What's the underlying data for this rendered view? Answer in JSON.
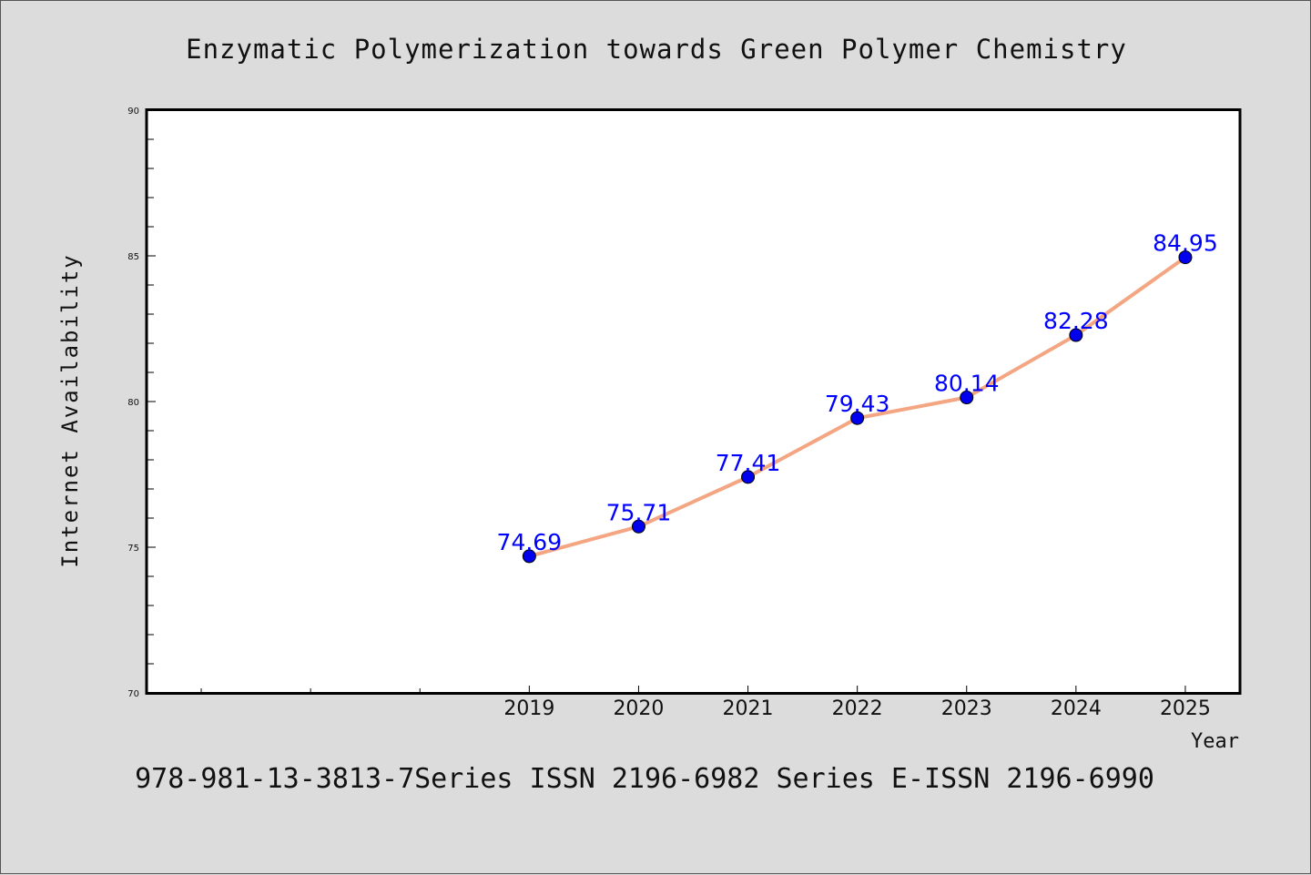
{
  "chart_data": {
    "type": "line",
    "title": "Enzymatic Polymerization towards Green Polymer Chemistry",
    "xlabel": "Year",
    "ylabel": "Internet Availability",
    "x_range": [
      2015.5,
      2025.5
    ],
    "ylim": [
      70,
      90
    ],
    "y_ticks": [
      "70",
      "75",
      "80",
      "85",
      "90"
    ],
    "x": [
      "2019",
      "2020",
      "2021",
      "2022",
      "2023",
      "2024",
      "2025"
    ],
    "x_num": [
      2019,
      2020,
      2021,
      2022,
      2023,
      2024,
      2025
    ],
    "x_minor_only": [
      2016,
      2017,
      2018
    ],
    "series": [
      {
        "values": [
          74.69,
          75.71,
          77.41,
          79.43,
          80.14,
          82.28,
          84.95
        ],
        "labels": [
          "74.69",
          "75.71",
          "77.41",
          "79.43",
          "80.14",
          "82.28",
          "84.95"
        ]
      }
    ],
    "grid": false,
    "line_color": "#f4a582",
    "marker_color": "#0000ee",
    "label_color": "#0000ff",
    "footer": "978-981-13-3813-7Series ISSN 2196-6982 Series E-ISSN 2196-6990"
  }
}
